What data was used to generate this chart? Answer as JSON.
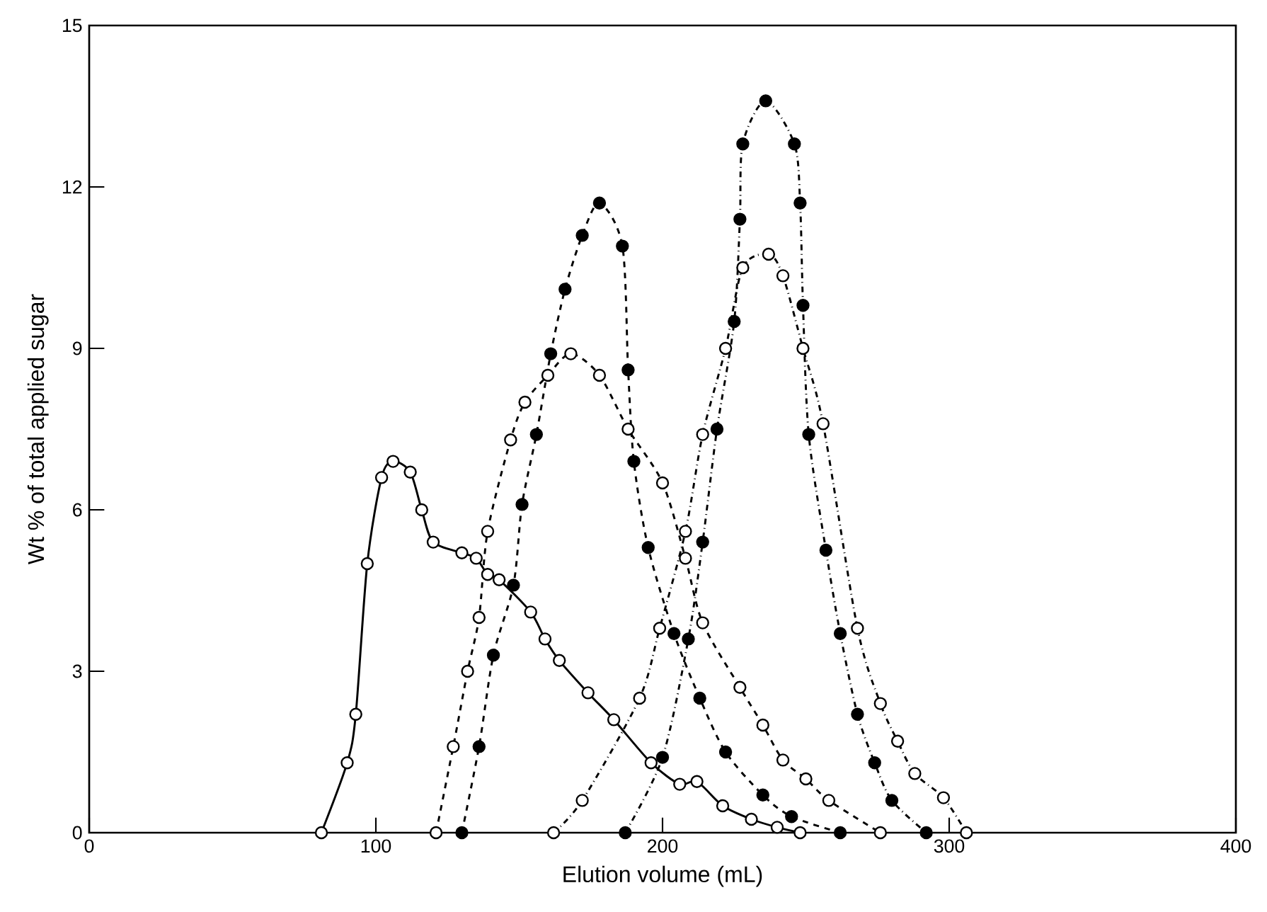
{
  "chart_data": {
    "type": "line",
    "xlabel": "Elution volume (mL)",
    "ylabel": "Wt % of total applied sugar",
    "xlim": [
      0,
      400
    ],
    "ylim": [
      0,
      15
    ],
    "xticks": [
      0,
      100,
      200,
      300,
      400
    ],
    "yticks": [
      0,
      3,
      6,
      9,
      12,
      15
    ],
    "grid": false,
    "series": [
      {
        "color": "#000000",
        "marker": "open circle",
        "line_style": "solid",
        "x": [
          81,
          90,
          93,
          97,
          102,
          106,
          112,
          116,
          120,
          130,
          135,
          139,
          143,
          154,
          159,
          164,
          174,
          183,
          196,
          206,
          212,
          221,
          231,
          240,
          248
        ],
        "values": [
          0,
          1.3,
          2.2,
          5.0,
          6.6,
          6.9,
          6.7,
          6.0,
          5.4,
          5.2,
          5.1,
          4.8,
          4.7,
          4.1,
          3.6,
          3.2,
          2.6,
          2.1,
          1.3,
          0.9,
          0.95,
          0.5,
          0.25,
          0.1,
          0
        ]
      },
      {
        "color": "#000000",
        "marker": "open circle",
        "line_style": "dashed",
        "x": [
          121,
          127,
          132,
          136,
          139,
          147,
          152,
          160,
          168,
          178,
          188,
          200,
          208,
          214,
          227,
          235,
          242,
          250,
          258,
          276
        ],
        "values": [
          0,
          1.6,
          3.0,
          4.0,
          5.6,
          7.3,
          8.0,
          8.5,
          8.9,
          8.5,
          7.5,
          6.5,
          5.1,
          3.9,
          2.7,
          2.0,
          1.35,
          1.0,
          0.6,
          0
        ]
      },
      {
        "color": "#000000",
        "marker": "circle",
        "line_style": "dashed",
        "x": [
          130,
          136,
          141,
          148,
          151,
          156,
          161,
          166,
          172,
          178,
          186,
          188,
          190,
          195,
          204,
          213,
          222,
          235,
          245,
          262
        ],
        "values": [
          0,
          1.6,
          3.3,
          4.6,
          6.1,
          7.4,
          8.9,
          10.1,
          11.1,
          11.7,
          10.9,
          8.6,
          6.9,
          5.3,
          3.7,
          2.5,
          1.5,
          0.7,
          0.3,
          0
        ]
      },
      {
        "color": "#000000",
        "marker": "open circle",
        "line_style": "dashdot",
        "x": [
          162,
          172,
          192,
          199,
          208,
          214,
          222,
          228,
          237,
          242,
          249,
          256,
          268,
          276,
          282,
          288,
          298,
          306
        ],
        "values": [
          0,
          0.6,
          2.5,
          3.8,
          5.6,
          7.4,
          9.0,
          10.5,
          10.75,
          10.35,
          9.0,
          7.6,
          3.8,
          2.4,
          1.7,
          1.1,
          0.65,
          0
        ]
      },
      {
        "color": "#000000",
        "marker": "circle",
        "line_style": "dashdot",
        "x": [
          187,
          200,
          209,
          214,
          219,
          225,
          227,
          228,
          236,
          246,
          248,
          249,
          251,
          257,
          262,
          268,
          274,
          280,
          292
        ],
        "values": [
          0,
          1.4,
          3.6,
          5.4,
          7.5,
          9.5,
          11.4,
          12.8,
          13.6,
          12.8,
          11.7,
          9.8,
          7.4,
          5.25,
          3.7,
          2.2,
          1.3,
          0.6,
          0
        ]
      }
    ]
  }
}
